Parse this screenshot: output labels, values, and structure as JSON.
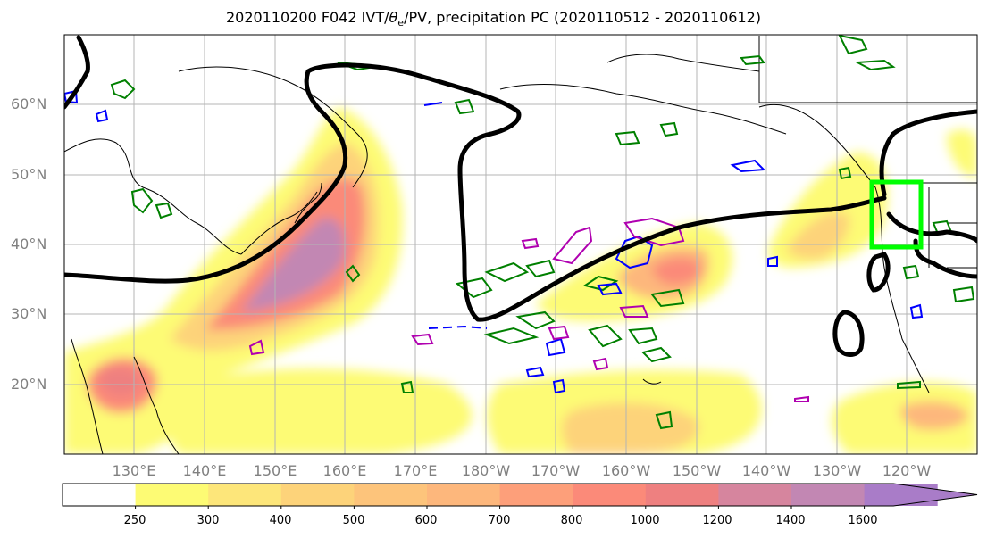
{
  "title": {
    "prefix": "2020110200 F042 IVT/",
    "theta": "θ",
    "sub": "e",
    "suffix": "/PV, precipitation PC (2020110512 - 2020110612)"
  },
  "lat_labels": [
    "60°N",
    "50°N",
    "40°N",
    "30°N",
    "20°N"
  ],
  "lon_labels": [
    "130°E",
    "140°E",
    "150°E",
    "160°E",
    "170°E",
    "180°W",
    "170°W",
    "160°W",
    "150°W",
    "140°W",
    "130°W",
    "120°W"
  ],
  "colorbar": {
    "ticks": [
      "250",
      "300",
      "400",
      "500",
      "600",
      "700",
      "800",
      "1000",
      "1200",
      "1400",
      "1600"
    ],
    "colors": [
      "#ffffff",
      "#fdfb74",
      "#fde67a",
      "#fdd37a",
      "#fdc47b",
      "#fdb77c",
      "#fd9f7a",
      "#fb8a79",
      "#ee8080",
      "#d6859e",
      "#c287b3",
      "#a97cc8"
    ]
  },
  "contour_colors": {
    "ivt": "#000000",
    "theta_e": "#008000",
    "pv_neg": "#0000ff",
    "pv_pos": "#b000b0",
    "box": "#00ff00"
  }
}
